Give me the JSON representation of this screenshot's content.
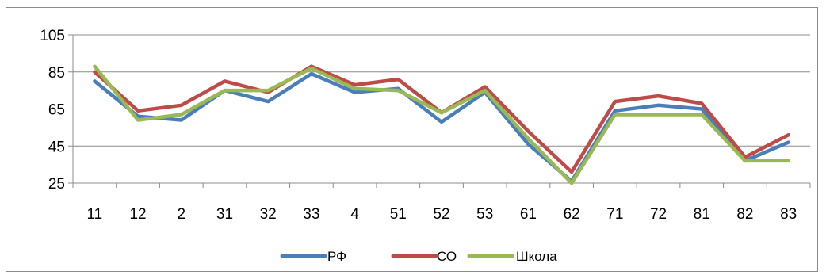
{
  "chart_data": {
    "type": "line",
    "categories": [
      "11",
      "12",
      "2",
      "31",
      "32",
      "33",
      "4",
      "51",
      "52",
      "53",
      "61",
      "62",
      "71",
      "72",
      "81",
      "82",
      "83"
    ],
    "ylim": [
      25,
      105
    ],
    "yticks": [
      25,
      45,
      65,
      85,
      105
    ],
    "grid": true,
    "legend_position": "bottom",
    "series": [
      {
        "name": "РФ",
        "color": "#4a7ebb",
        "values": [
          80,
          61,
          59,
          75,
          69,
          84,
          74,
          76,
          58,
          74,
          46,
          26,
          64,
          67,
          65,
          37,
          47
        ]
      },
      {
        "name": "СО",
        "color": "#be4b48",
        "values": [
          85,
          64,
          67,
          80,
          74,
          88,
          78,
          81,
          63,
          77,
          53,
          31,
          69,
          72,
          68,
          39,
          51
        ]
      },
      {
        "name": "Школа",
        "color": "#98b954",
        "values": [
          88,
          59,
          62,
          75,
          75,
          87,
          76,
          75,
          63,
          75,
          49,
          25,
          62,
          62,
          62,
          37,
          37
        ]
      }
    ]
  }
}
